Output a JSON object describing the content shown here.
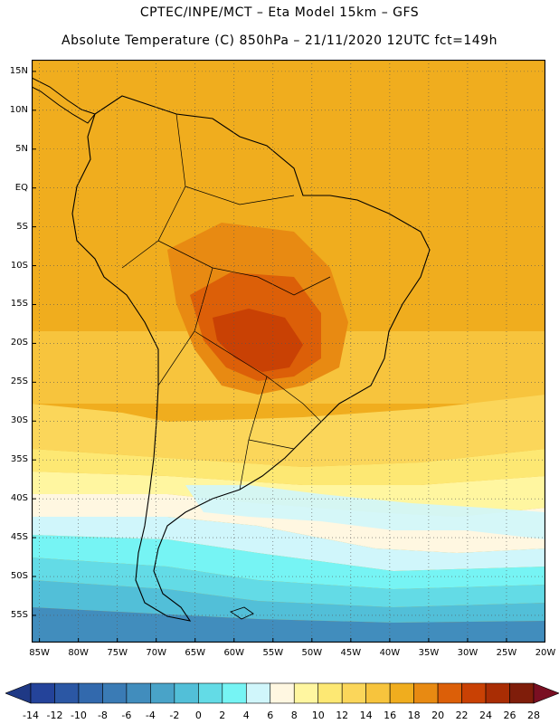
{
  "header": {
    "line1": "CPTEC/INPE/MCT –  Eta Model 15km – GFS",
    "line2": "Absolute Temperature (C) 850hPa – 21/11/2020 12UTC fct=149h"
  },
  "map": {
    "lat_labels": [
      "15N",
      "10N",
      "5N",
      "EQ",
      "5S",
      "10S",
      "15S",
      "20S",
      "25S",
      "30S",
      "35S",
      "40S",
      "45S",
      "50S",
      "55S"
    ],
    "lat_values": [
      15,
      10,
      5,
      0,
      -5,
      -10,
      -15,
      -20,
      -25,
      -30,
      -35,
      -40,
      -45,
      -50,
      -55
    ],
    "lon_labels": [
      "85W",
      "80W",
      "75W",
      "70W",
      "65W",
      "60W",
      "55W",
      "50W",
      "45W",
      "40W",
      "35W",
      "30W",
      "25W",
      "20W"
    ],
    "lon_values": [
      -85,
      -80,
      -75,
      -70,
      -65,
      -60,
      -55,
      -50,
      -45,
      -40,
      -35,
      -30,
      -25,
      -20
    ],
    "extent": {
      "lon_min": -86,
      "lon_max": -20,
      "lat_min": -58.5,
      "lat_max": 16.5
    },
    "grid": true
  },
  "colorbar": {
    "labels": [
      "-14",
      "-12",
      "-10",
      "-8",
      "-6",
      "-4",
      "-2",
      "0",
      "2",
      "4",
      "6",
      "8",
      "10",
      "12",
      "14",
      "16",
      "18",
      "20",
      "22",
      "24",
      "26",
      "28"
    ],
    "colors": [
      "#24439a",
      "#2b57a4",
      "#3269ad",
      "#3a7bb5",
      "#418dbd",
      "#49a3c8",
      "#52bfd8",
      "#63dbe6",
      "#76f4f4",
      "#d0f6fb",
      "#fff7e1",
      "#fff6a0",
      "#fde873",
      "#fbd65a",
      "#f7c43d",
      "#f0ad1e",
      "#e88a12",
      "#dc5f08",
      "#c94104",
      "#a92d04",
      "#7f1d0a"
    ],
    "under_color": "#1f3985",
    "over_color": "#7a0f22"
  }
}
